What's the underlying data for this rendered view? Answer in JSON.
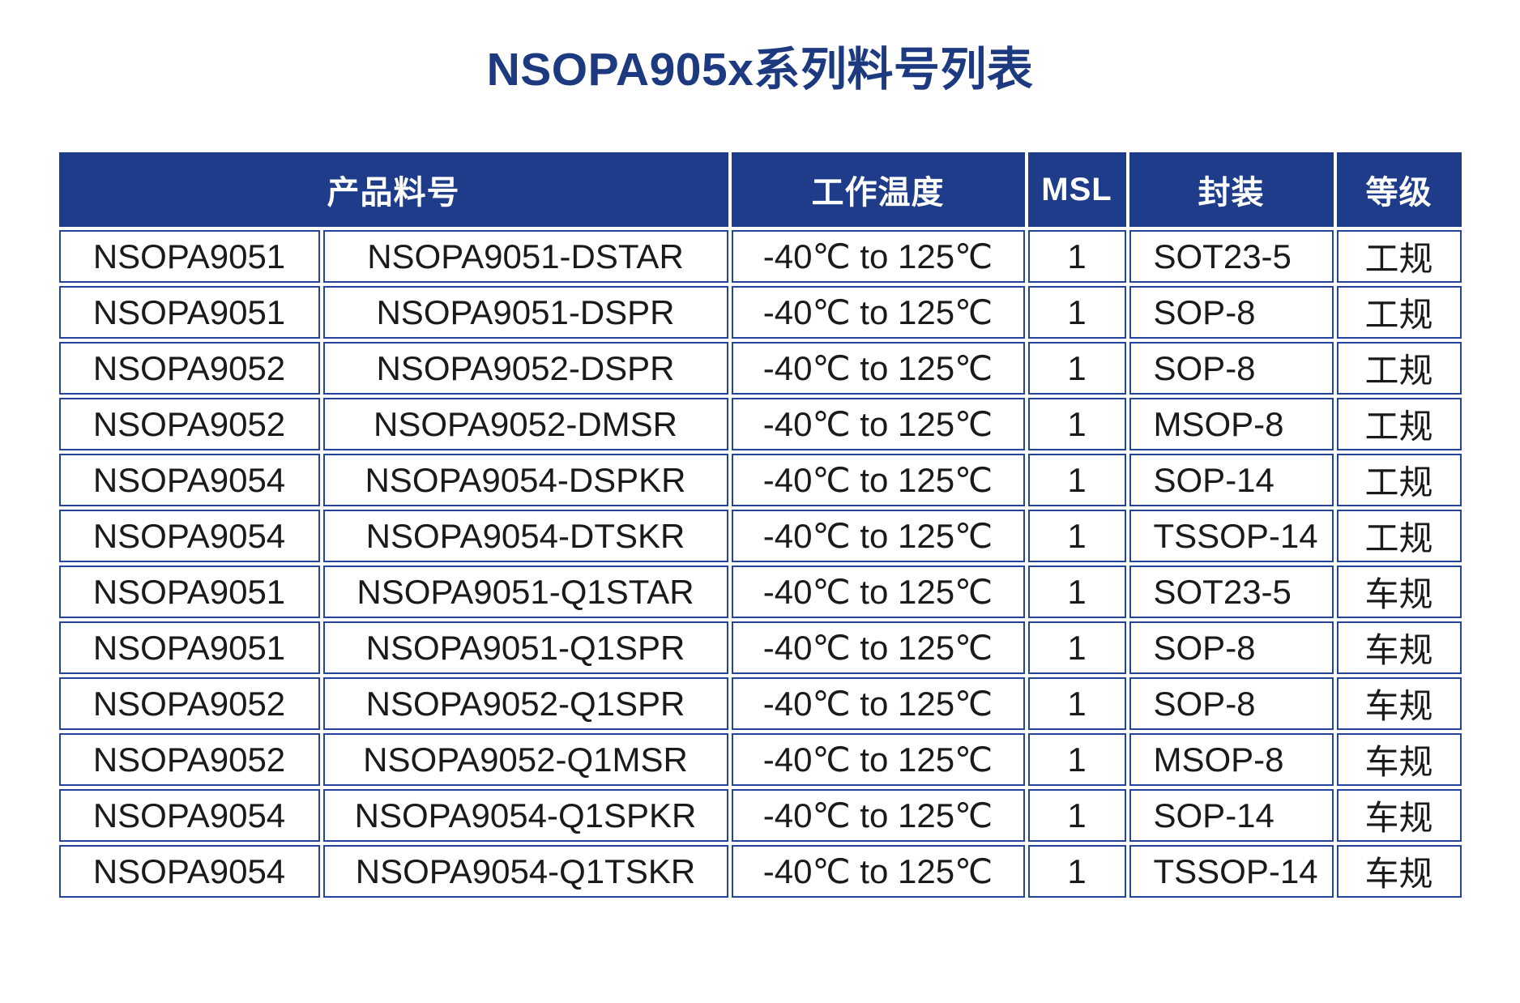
{
  "colors": {
    "navy": "#1e3c8a",
    "line": "#24439a",
    "title": "#1d3a80"
  },
  "chart_data": {
    "type": "table",
    "title": "NSOPA905x系列料号列表",
    "header": {
      "product": "产品料号",
      "temperature": "工作温度",
      "msl": "MSL",
      "package": "封装",
      "grade": "等级"
    },
    "rows": [
      {
        "series": "NSOPA9051",
        "part": "NSOPA9051-DSTAR",
        "temp": "-40℃ to 125℃",
        "msl": "1",
        "package": "SOT23-5",
        "grade": "工规"
      },
      {
        "series": "NSOPA9051",
        "part": "NSOPA9051-DSPR",
        "temp": "-40℃ to 125℃",
        "msl": "1",
        "package": "SOP-8",
        "grade": "工规"
      },
      {
        "series": "NSOPA9052",
        "part": "NSOPA9052-DSPR",
        "temp": "-40℃ to 125℃",
        "msl": "1",
        "package": "SOP-8",
        "grade": "工规"
      },
      {
        "series": "NSOPA9052",
        "part": "NSOPA9052-DMSR",
        "temp": "-40℃ to 125℃",
        "msl": "1",
        "package": "MSOP-8",
        "grade": "工规"
      },
      {
        "series": "NSOPA9054",
        "part": "NSOPA9054-DSPKR",
        "temp": "-40℃ to 125℃",
        "msl": "1",
        "package": "SOP-14",
        "grade": "工规"
      },
      {
        "series": "NSOPA9054",
        "part": "NSOPA9054-DTSKR",
        "temp": "-40℃ to 125℃",
        "msl": "1",
        "package": "TSSOP-14",
        "grade": "工规"
      },
      {
        "series": "NSOPA9051",
        "part": "NSOPA9051-Q1STAR",
        "temp": "-40℃ to 125℃",
        "msl": "1",
        "package": "SOT23-5",
        "grade": "车规"
      },
      {
        "series": "NSOPA9051",
        "part": "NSOPA9051-Q1SPR",
        "temp": "-40℃ to 125℃",
        "msl": "1",
        "package": "SOP-8",
        "grade": "车规"
      },
      {
        "series": "NSOPA9052",
        "part": "NSOPA9052-Q1SPR",
        "temp": "-40℃ to 125℃",
        "msl": "1",
        "package": "SOP-8",
        "grade": "车规"
      },
      {
        "series": "NSOPA9052",
        "part": "NSOPA9052-Q1MSR",
        "temp": "-40℃ to 125℃",
        "msl": "1",
        "package": "MSOP-8",
        "grade": "车规"
      },
      {
        "series": "NSOPA9054",
        "part": "NSOPA9054-Q1SPKR",
        "temp": "-40℃ to 125℃",
        "msl": "1",
        "package": "SOP-14",
        "grade": "车规"
      },
      {
        "series": "NSOPA9054",
        "part": "NSOPA9054-Q1TSKR",
        "temp": "-40℃ to 125℃",
        "msl": "1",
        "package": "TSSOP-14",
        "grade": "车规"
      }
    ]
  }
}
